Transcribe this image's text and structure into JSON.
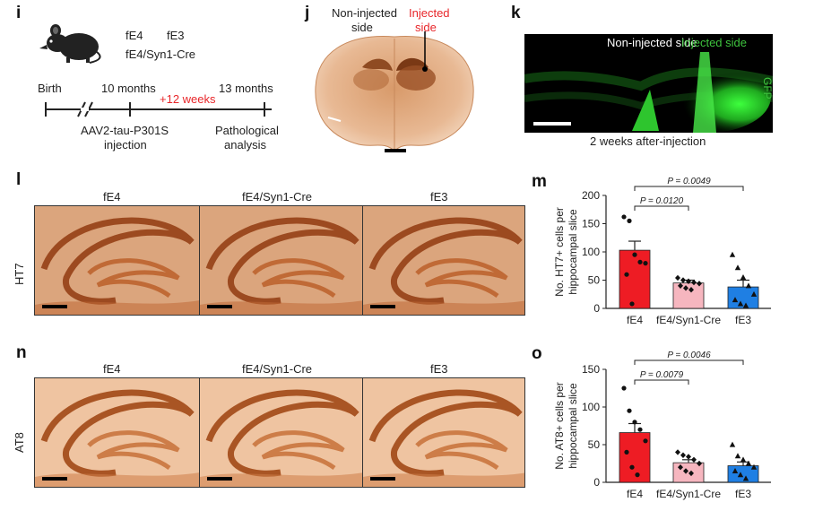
{
  "panels": {
    "i": "i",
    "j": "j",
    "k": "k",
    "l": "l",
    "m": "m",
    "n": "n",
    "o": "o"
  },
  "panel_i": {
    "genotypes": [
      "fE4",
      "fE3",
      "fE4/Syn1-Cre"
    ],
    "birth": "Birth",
    "t10": "10 months",
    "plus": "+12 weeks",
    "t13": "13 months",
    "injection_line1": "AAV2-tau-P301S",
    "injection_line2": "injection",
    "analysis_line1": "Pathological",
    "analysis_line2": "analysis"
  },
  "panel_j": {
    "noninjected_line1": "Non-injected",
    "noninjected_line2": "side",
    "injected_line1": "Injected",
    "injected_line2": "side"
  },
  "panel_k": {
    "noninjected": "Non-injected side",
    "injected": "Injected side",
    "gfp": "GFP",
    "caption": "2 weeks after-injection"
  },
  "panel_l": {
    "columns": [
      "fE4",
      "fE4/Syn1-Cre",
      "fE3"
    ],
    "row_label": "HT7"
  },
  "panel_n": {
    "columns": [
      "fE4",
      "fE4/Syn1-Cre",
      "fE3"
    ],
    "row_label": "AT8"
  },
  "colors": {
    "fE4": "#ee1c24",
    "fE4_Syn1Cre": "#f6b6bf",
    "fE3": "#1f7fe3",
    "stain": "#c8743c",
    "gfp": "#33dd33"
  },
  "chart_data": [
    {
      "id": "m",
      "type": "bar",
      "categories": [
        "fE4",
        "fE4/Syn1-Cre",
        "fE3"
      ],
      "values": [
        103,
        45,
        38
      ],
      "errors": [
        16,
        5,
        12
      ],
      "points": [
        [
          162,
          155,
          95,
          82,
          80,
          60,
          8
        ],
        [
          54,
          50,
          48,
          46,
          44,
          40,
          36,
          33
        ],
        [
          95,
          72,
          55,
          40,
          25,
          15,
          8,
          5
        ]
      ],
      "markers": [
        "circle",
        "diamond",
        "triangle"
      ],
      "ylabel_line1": "No. HT7+ cells per",
      "ylabel_line2": "hippocampal slice",
      "ylim": [
        0,
        200
      ],
      "yticks": [
        "0",
        "50",
        "100",
        "150",
        "200"
      ],
      "pvalues": [
        "P = 0.0049",
        "P = 0.0120"
      ]
    },
    {
      "id": "o",
      "type": "bar",
      "categories": [
        "fE4",
        "fE4/Syn1-Cre",
        "fE3"
      ],
      "values": [
        66,
        26,
        22
      ],
      "errors": [
        12,
        4,
        5
      ],
      "points": [
        [
          125,
          95,
          80,
          70,
          55,
          40,
          20,
          10
        ],
        [
          40,
          36,
          34,
          30,
          25,
          20,
          15,
          12
        ],
        [
          50,
          35,
          30,
          25,
          20,
          15,
          10,
          5
        ]
      ],
      "markers": [
        "circle",
        "diamond",
        "triangle"
      ],
      "ylabel_line1": "No. AT8+ cells per",
      "ylabel_line2": "hippocampal slice",
      "ylim": [
        0,
        150
      ],
      "yticks": [
        "0",
        "50",
        "100",
        "150"
      ],
      "pvalues": [
        "P = 0.0046",
        "P = 0.0079"
      ]
    }
  ]
}
